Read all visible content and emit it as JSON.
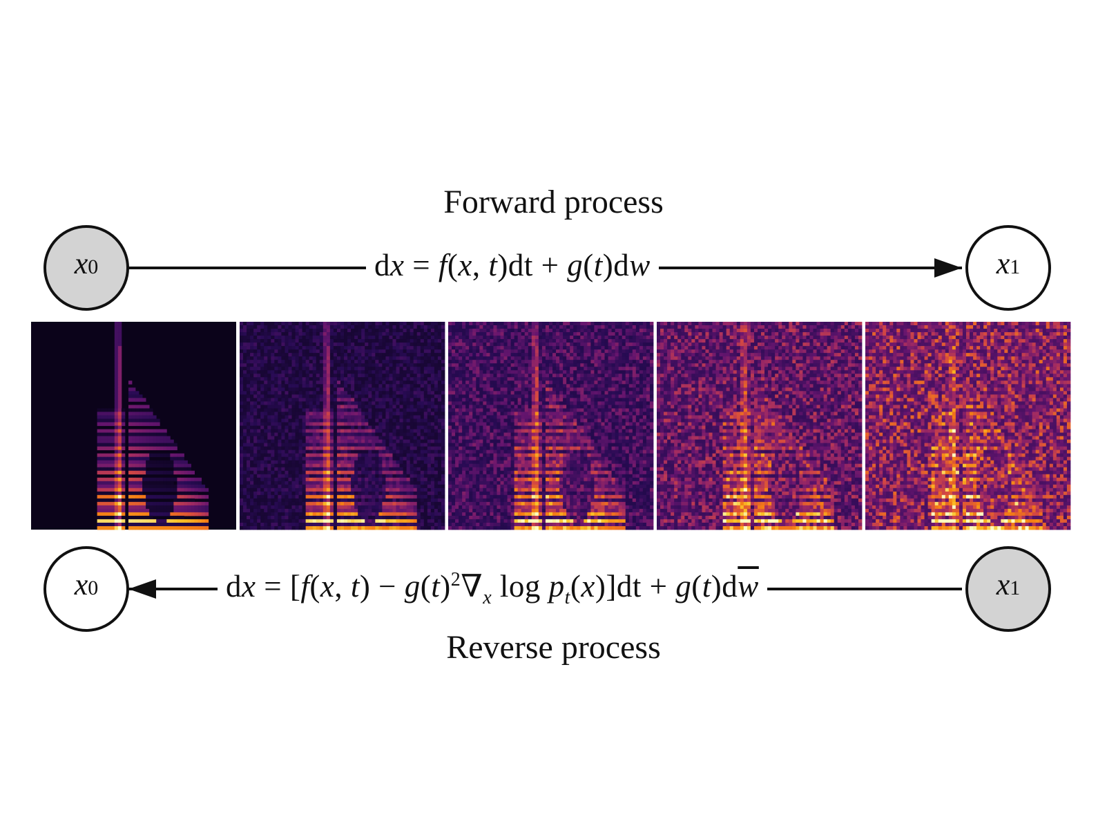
{
  "forward": {
    "title": "Forward process",
    "eq": {
      "p1": "d",
      "p2": "x",
      "p3": " = ",
      "p4": "f",
      "p5": "(",
      "p6": "x",
      "p7": ", ",
      "p8": "t",
      "p9": ")dt + ",
      "p10": "g",
      "p11": "(",
      "p12": "t",
      "p13": ")d",
      "p14": "w"
    },
    "start_node": {
      "var": "x",
      "sub": "0"
    },
    "end_node": {
      "var": "x",
      "sub": "1"
    }
  },
  "reverse": {
    "title": "Reverse process",
    "eq": {
      "p1": "d",
      "p2": "x",
      "p3": " = [",
      "p4": "f",
      "p5": "(",
      "p6": "x",
      "p7": ", ",
      "p8": "t",
      "p9": ") − ",
      "p10": "g",
      "p11": "(",
      "p12": "t",
      "p13": ")",
      "sup": "2",
      "p14": "∇",
      "sub": "x",
      "p15": " log ",
      "p16": "p",
      "sub2": "t",
      "p17": "(",
      "p18": "x",
      "p19": ")]dt + ",
      "p20": "g",
      "p21": "(",
      "p22": "t",
      "p23": ")d",
      "p24": "w"
    },
    "start_node": {
      "var": "x",
      "sub": "1"
    },
    "end_node": {
      "var": "x",
      "sub": "0"
    }
  },
  "colors": {
    "filled_node": "#d3d3d3",
    "node_stroke": "#111111",
    "arrow": "#111111",
    "spectrogram_dark": "#000004",
    "spectrogram_mid": "#51127c",
    "spectrogram_bright": "#fcfdbf"
  },
  "spectrogram_noise_levels": [
    0.0,
    0.25,
    0.5,
    0.75,
    1.0
  ]
}
